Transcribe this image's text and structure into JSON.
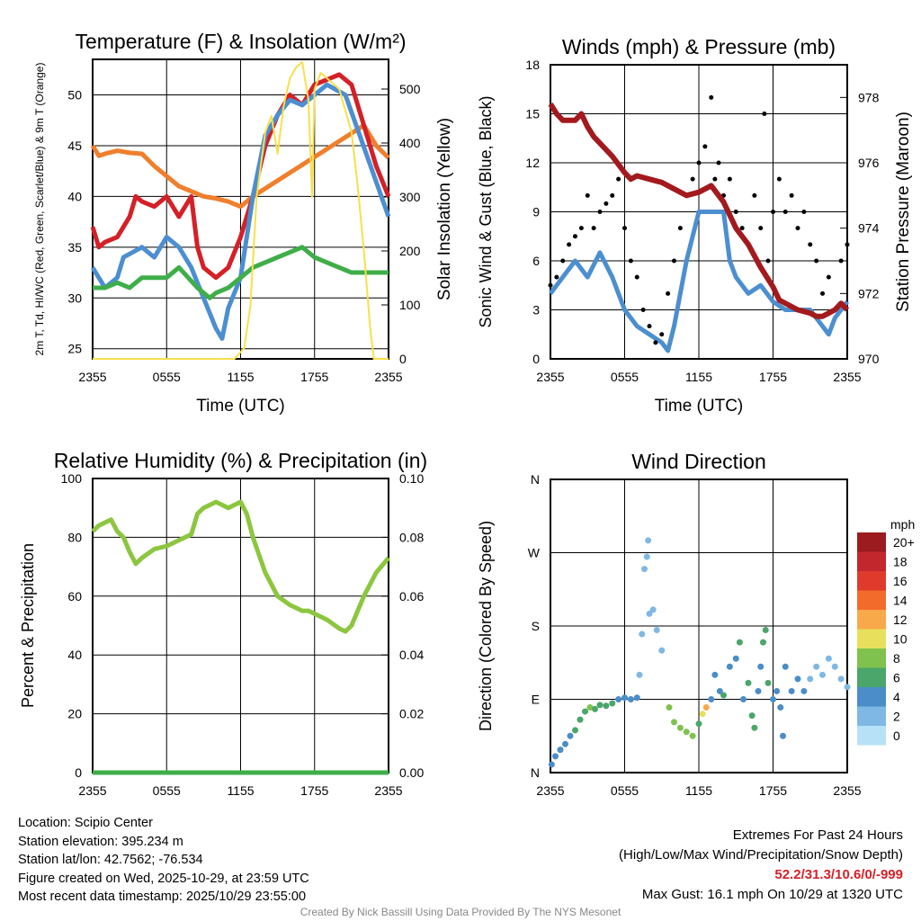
{
  "chart_data": [
    {
      "type": "line",
      "title": "Temperature (F) & Insolation (W/m²)",
      "xlabel": "Time (UTC)",
      "ylabel": "2m T, Td, HI/WC (Red, Green, Scarlet/Blue) & 9m T (Orange)",
      "ylabel2": "Solar Insolation (Yellow)",
      "xticks": [
        "2355",
        "0555",
        "1155",
        "1755",
        "2355"
      ],
      "ylim": [
        24,
        53.5
      ],
      "yticks": [
        25,
        30,
        35,
        40,
        45,
        50
      ],
      "y2lim": [
        0,
        555
      ],
      "y2ticks": [
        0,
        100,
        200,
        300,
        400,
        500
      ],
      "series": [
        {
          "name": "9m T",
          "color": "#f07f2c",
          "axis": "left",
          "x": [
            0,
            0.5,
            1,
            2,
            3,
            4,
            5,
            6,
            7,
            8,
            9,
            10,
            11,
            12,
            13,
            22,
            23,
            24
          ],
          "y": [
            45,
            44,
            44.2,
            44.5,
            44.3,
            44.2,
            43,
            42,
            41,
            40.5,
            40,
            39.8,
            39.5,
            39,
            40,
            47,
            45,
            43.8
          ]
        },
        {
          "name": "2m T",
          "color": "#d42027",
          "axis": "left",
          "x": [
            0,
            0.5,
            1,
            2,
            3,
            3.5,
            4,
            5,
            6,
            7,
            8,
            8.5,
            9,
            10,
            11,
            12,
            13,
            14,
            15,
            16,
            17,
            18,
            19,
            20,
            21,
            22,
            23,
            24
          ],
          "y": [
            37,
            35,
            35.5,
            36,
            38,
            40,
            39.5,
            39,
            40,
            38,
            40,
            35,
            33,
            32,
            33,
            36,
            40,
            45,
            48,
            50,
            49,
            51,
            51.5,
            52,
            51,
            47,
            43,
            40
          ]
        },
        {
          "name": "HI/WC",
          "color": "#4c8fd0",
          "axis": "left",
          "x": [
            0,
            1,
            2,
            2.5,
            4,
            5,
            6,
            7,
            8,
            9,
            10,
            10.5,
            11,
            12,
            13,
            14,
            15,
            16,
            17,
            18,
            19,
            20.5,
            24
          ],
          "y": [
            33,
            31,
            32,
            34,
            35,
            34,
            36,
            35,
            33,
            30,
            27,
            26,
            29,
            32,
            40,
            46,
            48,
            49.5,
            49,
            50,
            51,
            50,
            38
          ]
        },
        {
          "name": "Td",
          "color": "#3fae49",
          "axis": "left",
          "x": [
            0,
            1,
            2,
            3,
            4,
            5,
            6,
            7,
            8.5,
            9.5,
            10,
            11,
            12,
            13,
            14,
            15,
            16,
            17,
            18,
            19,
            20,
            21,
            22,
            23,
            24
          ],
          "y": [
            31,
            31,
            31.5,
            31,
            32,
            32,
            32,
            33,
            31,
            30,
            30.5,
            31,
            32,
            33,
            33.5,
            34,
            34.5,
            35,
            34,
            33.5,
            33,
            32.5,
            32.5,
            32.5,
            32.5
          ]
        },
        {
          "name": "Solar Insolation",
          "color": "#f7e04b",
          "axis": "right",
          "x": [
            0,
            11.5,
            12.3,
            12.8,
            13.3,
            14,
            14.5,
            15,
            15.5,
            16,
            16.5,
            17,
            17.5,
            17.8,
            18,
            18.5,
            19,
            20,
            21,
            21.5,
            22,
            22.5,
            22.8,
            24
          ],
          "y": [
            0,
            0,
            20,
            100,
            300,
            420,
            450,
            380,
            470,
            520,
            540,
            550,
            480,
            300,
            500,
            530,
            520,
            500,
            420,
            320,
            200,
            60,
            0,
            0
          ]
        }
      ]
    },
    {
      "type": "line",
      "title": "Winds (mph) & Pressure (mb)",
      "xlabel": "Time (UTC)",
      "ylabel": "Sonic Wind & Gust (Blue, Black)",
      "ylabel2": "Station Pressure (Maroon)",
      "xticks": [
        "2355",
        "0555",
        "1155",
        "1755",
        "2355"
      ],
      "ylim": [
        0,
        18
      ],
      "yticks": [
        0,
        3,
        6,
        9,
        12,
        15,
        18
      ],
      "y2lim": [
        970,
        979
      ],
      "y2ticks": [
        970,
        972,
        974,
        976,
        978
      ],
      "series": [
        {
          "name": "Sonic Wind",
          "color": "#4c8fd0",
          "axis": "left",
          "x": [
            0,
            1,
            2,
            3,
            4,
            5,
            5.5,
            6,
            7,
            8,
            9,
            9.5,
            10,
            11,
            12,
            13,
            14,
            14.5,
            15,
            16,
            17,
            18,
            19,
            20,
            21,
            22,
            22.5,
            23,
            24
          ],
          "y": [
            4,
            5,
            6,
            5,
            6.5,
            5,
            4,
            3,
            2,
            1.5,
            1,
            0.5,
            2,
            6,
            9,
            9,
            9,
            6,
            5,
            4,
            4.5,
            3.5,
            3,
            3,
            3,
            2,
            1.5,
            2.5,
            3.5
          ]
        },
        {
          "name": "Gust",
          "color": "#000000",
          "axis": "left",
          "x": [
            0,
            0.5,
            1,
            1.5,
            2,
            2.5,
            3,
            3.5,
            4,
            4.5,
            5,
            5.5,
            6,
            6.5,
            7,
            7.5,
            8,
            8.5,
            9,
            9.5,
            10,
            10.5,
            11,
            11.5,
            12,
            12.5,
            13,
            13.3,
            13.6,
            14,
            14.5,
            15,
            15.5,
            16,
            16.5,
            17,
            17.3,
            17.6,
            18,
            18.5,
            19,
            19.5,
            20,
            20.5,
            21,
            21.5,
            22,
            22.5,
            23,
            23.5,
            24
          ],
          "y": [
            4.5,
            5,
            6,
            7,
            7.5,
            8,
            10,
            8,
            9,
            9.5,
            10,
            11,
            8,
            6,
            5,
            3,
            2,
            1,
            1.5,
            4,
            6,
            8,
            10,
            11,
            12,
            13,
            16,
            11,
            12,
            10,
            11,
            9,
            8,
            7,
            10,
            8,
            15,
            6,
            9,
            11,
            9,
            10,
            8,
            9,
            7,
            6,
            4,
            5,
            3,
            6,
            7
          ]
        },
        {
          "name": "Station Pressure",
          "color": "#a31a1e",
          "axis": "right",
          "x": [
            0,
            0.5,
            1,
            2,
            2.5,
            3,
            3.5,
            4,
            5,
            6,
            6.5,
            7,
            8,
            9,
            10,
            11,
            12,
            12.5,
            13,
            14,
            14.5,
            15,
            16,
            17,
            18,
            18.5,
            19,
            20,
            21,
            21.5,
            22,
            23,
            23.5,
            24
          ],
          "y": [
            977.8,
            977.5,
            977.3,
            977.3,
            977.5,
            977.1,
            976.8,
            976.6,
            976.2,
            975.7,
            975.5,
            975.6,
            975.5,
            975.4,
            975.2,
            975.0,
            975.1,
            975.2,
            975.3,
            974.8,
            974.4,
            974.0,
            973.5,
            972.8,
            972.2,
            971.8,
            971.7,
            971.5,
            971.4,
            971.3,
            971.3,
            971.5,
            971.7,
            971.5
          ]
        }
      ]
    },
    {
      "type": "line",
      "title": "Relative Humidity (%) & Precipitation (in)",
      "ylabel": "Percent & Precipitation",
      "xticks": [
        "2355",
        "0555",
        "1155",
        "1755",
        "2355"
      ],
      "ylim": [
        0,
        100
      ],
      "yticks": [
        0,
        20,
        40,
        60,
        80,
        100
      ],
      "y2lim": [
        0,
        0.1
      ],
      "y2ticks": [
        "0.00",
        "0.02",
        "0.04",
        "0.06",
        "0.08",
        "0.10"
      ],
      "series": [
        {
          "name": "RH",
          "color": "#8cc63f",
          "axis": "left",
          "x": [
            0,
            0.5,
            1,
            1.5,
            2,
            2.5,
            3,
            3.5,
            4,
            5,
            6,
            7,
            7.5,
            8,
            8.5,
            9,
            10,
            10.5,
            11,
            11.5,
            12,
            12.5,
            13,
            14,
            15,
            16,
            17,
            17.5,
            18,
            19,
            20,
            20.5,
            21,
            22,
            23,
            24
          ],
          "y": [
            82,
            84,
            85,
            86,
            82,
            80,
            75,
            71,
            73,
            76,
            77,
            79,
            80,
            81,
            88,
            90,
            92,
            91,
            90,
            91,
            92,
            88,
            80,
            68,
            60,
            57,
            55,
            55,
            54,
            52,
            49,
            48,
            50,
            60,
            68,
            73
          ]
        },
        {
          "name": "Precipitation",
          "color": "#3fae49",
          "axis": "right",
          "x": [
            0,
            24
          ],
          "y": [
            0,
            0
          ]
        }
      ]
    },
    {
      "type": "scatter",
      "title": "Wind Direction",
      "ylabel": "Direction (Colored By Speed)",
      "xticks": [
        "2355",
        "0555",
        "1155",
        "1755",
        "2355"
      ],
      "yticks": [
        "N",
        "E",
        "S",
        "W",
        "N"
      ],
      "ylim": [
        0,
        360
      ],
      "legend": {
        "title": "mph",
        "labels": [
          "20+",
          "18",
          "16",
          "14",
          "12",
          "10",
          "8",
          "6",
          "4",
          "2",
          "0"
        ],
        "colors": [
          "#9b1b1f",
          "#c1272d",
          "#e03a2d",
          "#f26b2b",
          "#f8a94a",
          "#e8e05a",
          "#7fc24d",
          "#4aa66a",
          "#4a8dc8",
          "#7fb8e5",
          "#b7e1f7"
        ]
      },
      "points": [
        [
          0.1,
          10,
          4
        ],
        [
          0.4,
          20,
          4
        ],
        [
          0.8,
          28,
          3
        ],
        [
          1.2,
          35,
          4
        ],
        [
          1.6,
          45,
          4
        ],
        [
          2,
          52,
          6
        ],
        [
          2.4,
          65,
          6
        ],
        [
          2.8,
          75,
          6
        ],
        [
          3.2,
          80,
          8
        ],
        [
          3.6,
          78,
          6
        ],
        [
          4,
          83,
          6
        ],
        [
          4.5,
          82,
          6
        ],
        [
          5,
          85,
          6
        ],
        [
          5.5,
          90,
          4
        ],
        [
          6,
          92,
          4
        ],
        [
          6.5,
          90,
          4
        ],
        [
          7,
          92,
          4
        ],
        [
          7.2,
          120,
          2
        ],
        [
          7.4,
          170,
          2
        ],
        [
          7.6,
          250,
          2
        ],
        [
          7.8,
          265,
          2
        ],
        [
          7.9,
          285,
          2
        ],
        [
          8,
          195,
          1
        ],
        [
          8.3,
          200,
          1
        ],
        [
          8.6,
          175,
          1
        ],
        [
          9,
          150,
          2
        ],
        [
          9.6,
          80,
          8
        ],
        [
          10,
          62,
          8
        ],
        [
          10.5,
          55,
          8
        ],
        [
          11,
          50,
          8
        ],
        [
          11.5,
          45,
          8
        ],
        [
          12,
          60,
          6
        ],
        [
          12.3,
          72,
          10
        ],
        [
          12.6,
          80,
          12
        ],
        [
          13,
          90,
          4
        ],
        [
          13.3,
          120,
          4
        ],
        [
          13.7,
          100,
          4
        ],
        [
          14,
          95,
          6
        ],
        [
          14.5,
          130,
          4
        ],
        [
          15,
          140,
          4
        ],
        [
          15.3,
          160,
          6
        ],
        [
          15.6,
          90,
          4
        ],
        [
          16,
          110,
          6
        ],
        [
          16.3,
          70,
          6
        ],
        [
          16.5,
          55,
          6
        ],
        [
          16.8,
          100,
          4
        ],
        [
          17,
          130,
          4
        ],
        [
          17.2,
          160,
          6
        ],
        [
          17.4,
          175,
          6
        ],
        [
          17.6,
          110,
          6
        ],
        [
          18,
          90,
          4
        ],
        [
          18.3,
          100,
          4
        ],
        [
          18.6,
          80,
          4
        ],
        [
          18.8,
          45,
          4
        ],
        [
          19,
          130,
          4
        ],
        [
          19.5,
          100,
          4
        ],
        [
          20,
          115,
          4
        ],
        [
          20.5,
          100,
          4
        ],
        [
          21,
          115,
          2
        ],
        [
          21.5,
          130,
          2
        ],
        [
          22,
          120,
          2
        ],
        [
          22.5,
          140,
          1
        ],
        [
          23,
          130,
          1
        ],
        [
          23.5,
          115,
          2
        ],
        [
          24,
          105,
          2
        ]
      ]
    }
  ],
  "footer": {
    "location": "Location: Scipio Center",
    "elevation": "Station elevation: 395.234 m",
    "latlon": "Station lat/lon: 42.7562; -76.534",
    "created": "Figure created on Wed, 2025-10-29, at 23:59 UTC",
    "recent": "Most recent data timestamp: 2025/10/29 23:55:00",
    "extremes_title": "Extremes For Past 24 Hours",
    "extremes_sub": "(High/Low/Max Wind/Precipitation/Snow Depth)",
    "extremes_values": "52.2/31.3/10.6/0/-999",
    "max_gust": "Max Gust: 16.1 mph On 10/29 at 1320 UTC",
    "credit": "Created By Nick Bassill Using Data Provided By The NYS Mesonet"
  }
}
